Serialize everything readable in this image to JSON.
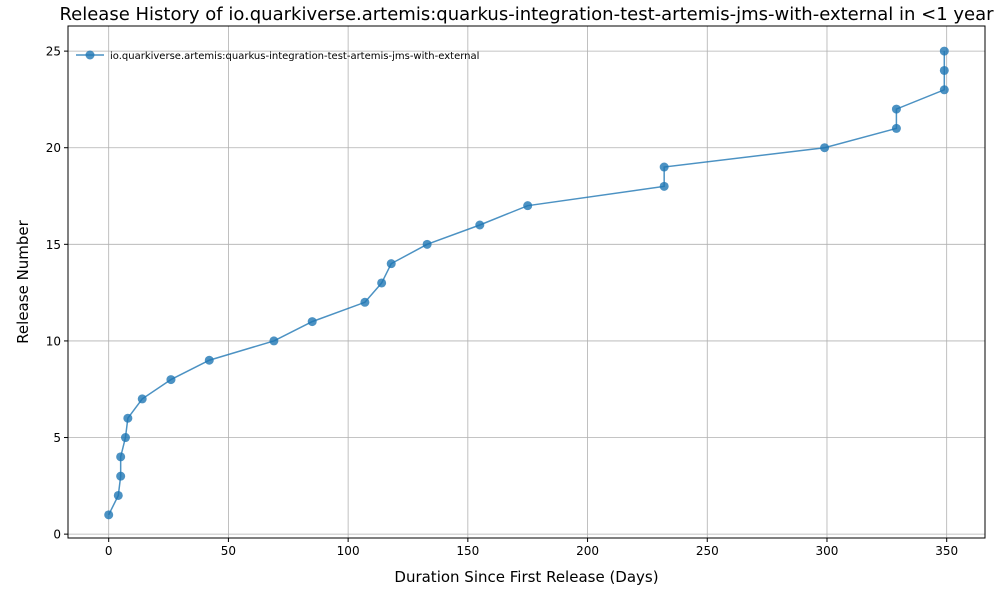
{
  "chart_data": {
    "type": "line",
    "title": "Release History of io.quarkiverse.artemis:quarkus-integration-test-artemis-jms-with-external in <1 year",
    "xlabel": "Duration Since First Release (Days)",
    "ylabel": "Release Number",
    "xlim": [
      -17,
      366
    ],
    "ylim": [
      -0.2,
      26.3
    ],
    "xticks": [
      0,
      50,
      100,
      150,
      200,
      250,
      300,
      350
    ],
    "yticks": [
      0,
      5,
      10,
      15,
      20,
      25
    ],
    "grid": true,
    "legend_position": "top-left",
    "series": [
      {
        "name": "io.quarkiverse.artemis:quarkus-integration-test-artemis-jms-with-external",
        "color": "#1f77b4",
        "marker": "circle",
        "x": [
          0,
          4,
          5,
          5,
          7,
          8,
          14,
          26,
          42,
          69,
          85,
          107,
          114,
          118,
          133,
          155,
          175,
          232,
          232,
          299,
          329,
          329,
          349,
          349,
          349
        ],
        "y": [
          1,
          2,
          3,
          4,
          5,
          6,
          7,
          8,
          9,
          10,
          11,
          12,
          13,
          14,
          15,
          16,
          17,
          18,
          19,
          20,
          21,
          22,
          23,
          24,
          25
        ]
      }
    ]
  }
}
